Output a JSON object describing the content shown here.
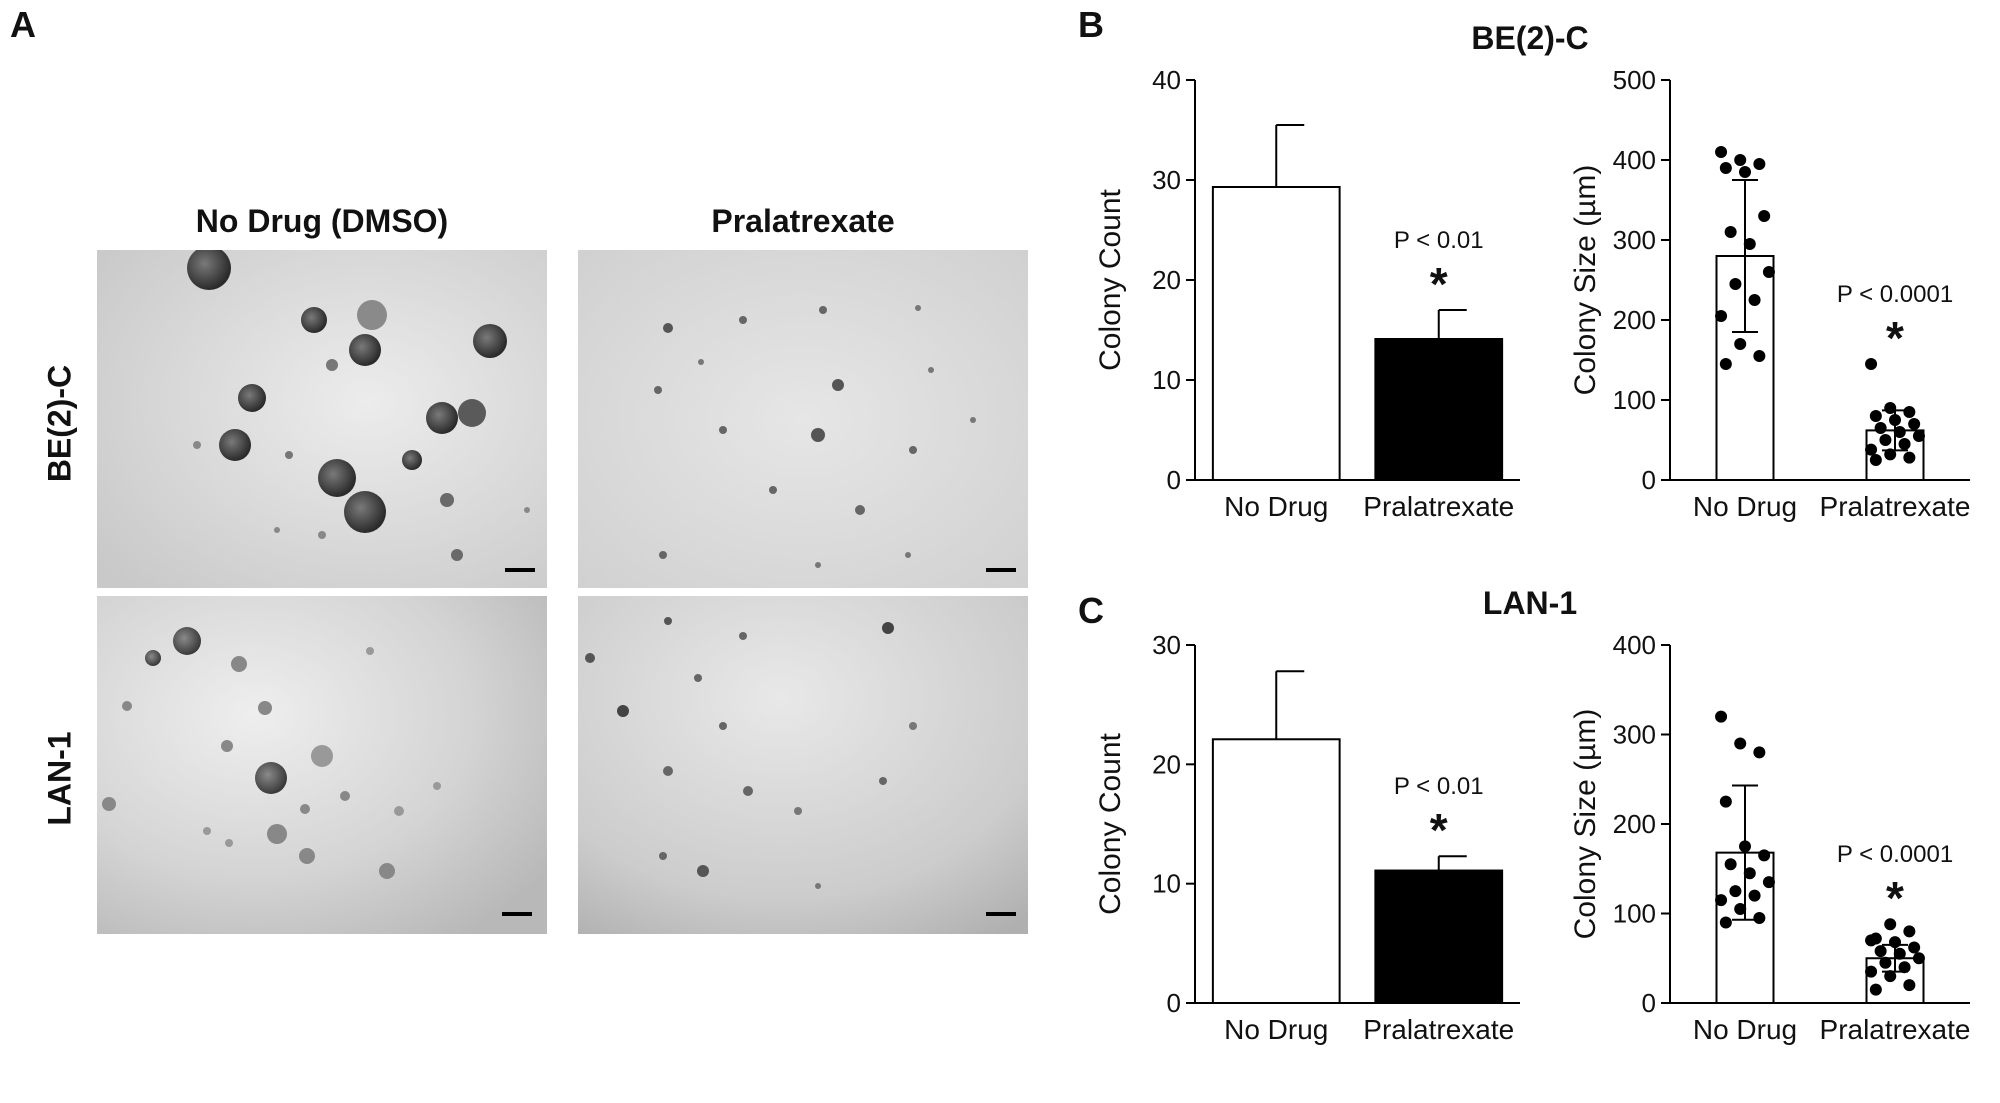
{
  "panels": {
    "a_letter": "A",
    "b_letter": "B",
    "c_letter": "C"
  },
  "micrographs": {
    "col_titles": [
      "No Drug (DMSO)",
      "Pralatrexate"
    ],
    "row_labels": [
      "BE(2)-C",
      "LAN-1"
    ]
  },
  "sections": {
    "b_title": "BE(2)-C",
    "c_title": "LAN-1"
  },
  "chart_data": [
    {
      "id": "b-count",
      "type": "bar",
      "categories": [
        "No Drug",
        "Pralatrexate"
      ],
      "values": [
        29.3,
        14.1
      ],
      "errors": [
        6.2,
        2.9
      ],
      "colors": [
        "#ffffff",
        "#000000"
      ],
      "ylabel": "Colony Count",
      "ylim": [
        0,
        40
      ],
      "yticks": [
        0,
        10,
        20,
        30,
        40
      ],
      "annotation": {
        "text": "P < 0.01",
        "star": "*"
      }
    },
    {
      "id": "b-size",
      "type": "bar",
      "categories": [
        "No Drug",
        "Pralatrexate"
      ],
      "values": [
        280,
        62
      ],
      "errors": [
        95,
        25
      ],
      "colors": [
        "#ffffff",
        "#ffffff"
      ],
      "ylabel": "Colony Size (µm)",
      "ylim": [
        0,
        500
      ],
      "yticks": [
        0,
        100,
        200,
        300,
        400,
        500
      ],
      "points": [
        [
          410,
          400,
          395,
          390,
          385,
          330,
          310,
          295,
          260,
          245,
          225,
          205,
          170,
          155,
          145
        ],
        [
          145,
          90,
          85,
          80,
          75,
          70,
          65,
          60,
          55,
          50,
          45,
          38,
          32,
          28,
          25
        ]
      ],
      "annotation": {
        "text": "P < 0.0001",
        "star": "*"
      }
    },
    {
      "id": "c-count",
      "type": "bar",
      "categories": [
        "No Drug",
        "Pralatrexate"
      ],
      "values": [
        22.1,
        11.1
      ],
      "errors": [
        5.7,
        1.2
      ],
      "colors": [
        "#ffffff",
        "#000000"
      ],
      "ylabel": "Colony Count",
      "ylim": [
        0,
        30
      ],
      "yticks": [
        0,
        10,
        20,
        30
      ],
      "annotation": {
        "text": "P < 0.01",
        "star": "*"
      }
    },
    {
      "id": "c-size",
      "type": "bar",
      "categories": [
        "No Drug",
        "Pralatrexate"
      ],
      "values": [
        168,
        50
      ],
      "errors": [
        75,
        15
      ],
      "colors": [
        "#ffffff",
        "#ffffff"
      ],
      "ylabel": "Colony Size (µm)",
      "ylim": [
        0,
        400
      ],
      "yticks": [
        0,
        100,
        200,
        300,
        400
      ],
      "points": [
        [
          320,
          290,
          280,
          225,
          175,
          165,
          155,
          145,
          135,
          125,
          120,
          115,
          105,
          95,
          90
        ],
        [
          70,
          88,
          80,
          72,
          68,
          62,
          58,
          55,
          50,
          45,
          40,
          35,
          30,
          20,
          15
        ]
      ],
      "annotation": {
        "text": "P < 0.0001",
        "star": "*"
      }
    }
  ]
}
